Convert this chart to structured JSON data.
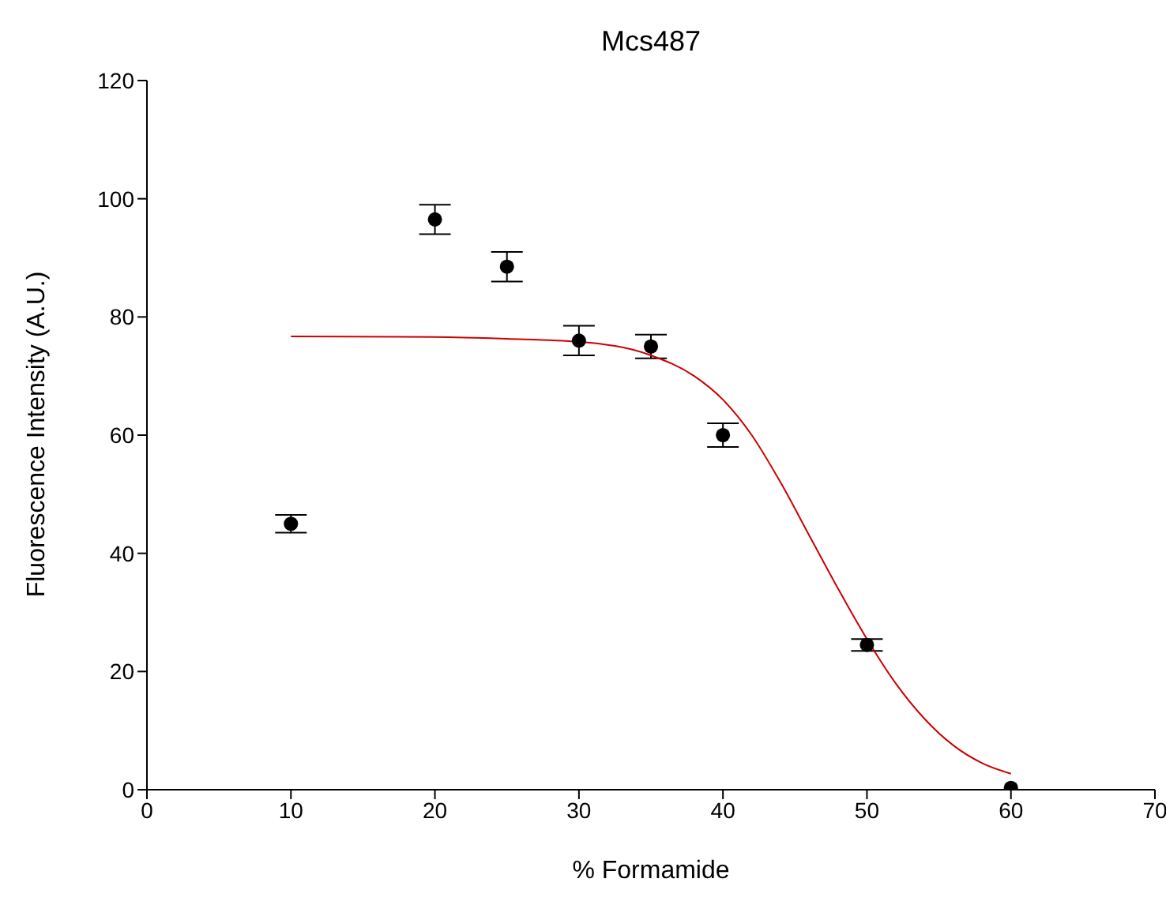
{
  "chart_data": {
    "type": "scatter",
    "title": "Mcs487",
    "xlabel": "% Formamide",
    "ylabel": "Fluorescence Intensity (A.U.)",
    "xlim": [
      0,
      70
    ],
    "xticks": [
      0,
      10,
      20,
      30,
      40,
      50,
      60,
      70
    ],
    "ylim": [
      0,
      120
    ],
    "yticks": [
      0,
      20,
      40,
      60,
      80,
      100,
      120
    ],
    "marker": "circle",
    "series": [
      {
        "color": "#000000",
        "x": [
          10,
          20,
          25,
          30,
          35,
          40,
          50,
          60
        ],
        "values": [
          45,
          96.5,
          88.5,
          76,
          75,
          60,
          24.5,
          0.3
        ],
        "errors": [
          1.5,
          2.5,
          2.5,
          2.5,
          2,
          2,
          1,
          null
        ]
      },
      {
        "type": "line",
        "color": "#cc0000",
        "marker": "none",
        "x": [
          10,
          20,
          25,
          30,
          35,
          38,
          40,
          42,
          44,
          46,
          48,
          50,
          52,
          54,
          56,
          58,
          60
        ],
        "values": [
          76.7,
          76.6,
          76.3,
          75.8,
          73.5,
          70,
          66,
          60,
          52,
          43,
          34,
          25.5,
          18,
          12,
          7.5,
          4.5,
          2.7
        ]
      }
    ]
  }
}
